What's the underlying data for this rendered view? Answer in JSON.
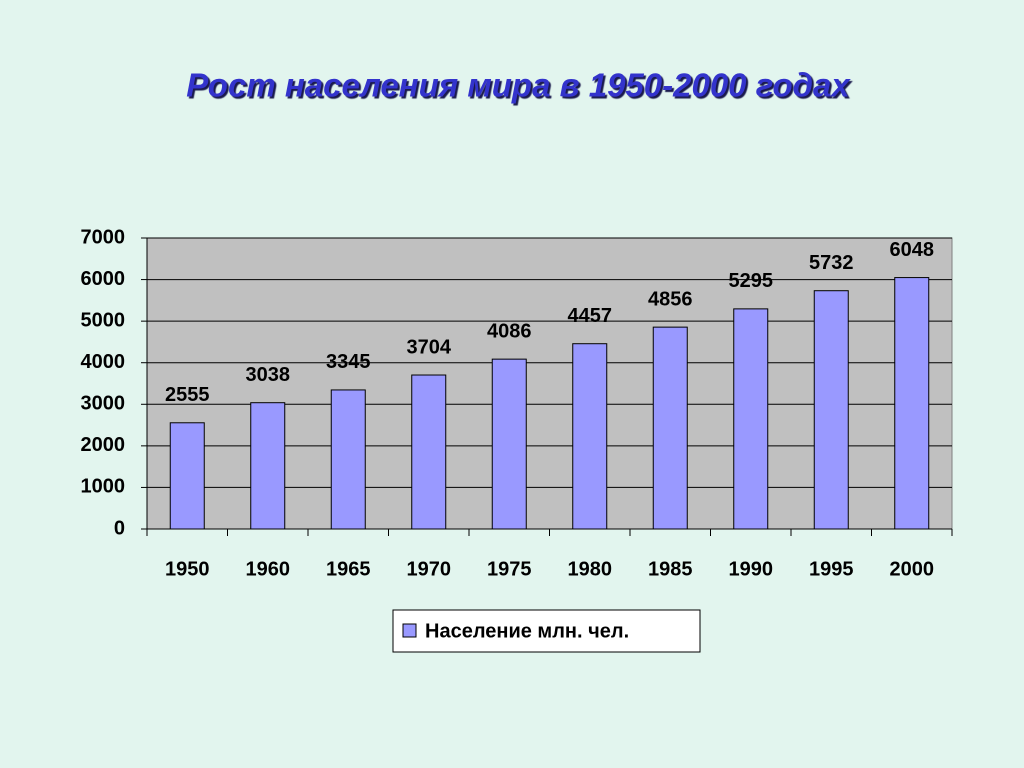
{
  "chart_data": {
    "type": "bar",
    "title": "Рост населения мира в 1950-2000 годах",
    "categories": [
      "1950",
      "1960",
      "1965",
      "1970",
      "1975",
      "1980",
      "1985",
      "1990",
      "1995",
      "2000"
    ],
    "series": [
      {
        "name": "Население млн. чел.",
        "color": "#9999ff",
        "values": [
          2555,
          3038,
          3345,
          3704,
          4086,
          4457,
          4856,
          5295,
          5732,
          6048
        ]
      }
    ],
    "ylim": [
      0,
      7000
    ],
    "yticks": [
      0,
      1000,
      2000,
      3000,
      4000,
      5000,
      6000,
      7000
    ],
    "grid": true,
    "legend": "bottom"
  }
}
